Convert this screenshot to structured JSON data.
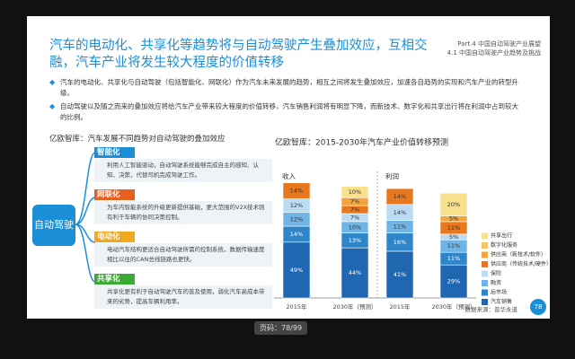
{
  "viewer": {
    "page_indicator": "页码：78/99"
  },
  "slide": {
    "title": "汽车的电动化、共享化等趋势将与自动驾驶产生叠加效应，互相交融，汽车产业将发生较大程度的价值转移",
    "section": "Part.4 中国自动驾驶产业展望",
    "subsection": "4.1 中国自动驾驶产业趋势及挑战",
    "bullets": [
      "汽车的电动化、共享化与自动驾驶（包括智能化、网联化）作为汽车未来发展的趋势，相互之间将发生叠加效应，加速各自趋势的实现和汽车产业的转型升级。",
      "自动驾驶以及随之而来的叠加效应将给汽车产业带来较大程度的价值转移，汽车销售利润将有明显下降，而新技术、数字化和共享出行将在利润中占到较大的比例。"
    ],
    "diagram": {
      "title": "亿欧智库：汽车发展不同趋势对自动驾驶的叠加效应",
      "center": "自动驾驶",
      "items": [
        {
          "label": "智能化",
          "text": "利用人工智能驱动，自动驾驶系统能够完成自主的感知、认知、决策，代替司机完成驾驶工作。"
        },
        {
          "label": "网联化",
          "text": "为车内智能系统的升级更新提供基础，更大范围的V2X技术则有利于车辆的协同决策控制。"
        },
        {
          "label": "电动化",
          "text": "电动汽车结构更适合自动驾驶所需的控制系统，数据传输速度相比以往的CAN总线链路也更快。"
        },
        {
          "label": "共享化",
          "text": "共享化更有利于自动驾驶汽车的普及使用，弱化汽车高成本带来的劣势，提高车辆利用率。"
        }
      ]
    },
    "source": "数据来源：普华永道",
    "page_number": 78
  },
  "chart_data": {
    "type": "stacked_bar",
    "title": "亿欧智库：2015-2030年汽车产业价值转移预测",
    "groups": [
      "收入",
      "利润"
    ],
    "categories": [
      "2015年",
      "2030年（预测）",
      "2015年",
      "2030年（预测）"
    ],
    "ylim": [
      0,
      100
    ],
    "series": [
      {
        "name": "汽车销售",
        "color": "#1f67b0",
        "values": [
          49,
          44,
          41,
          29
        ],
        "value_labels": [
          "49%",
          "44%",
          "41%",
          "29%"
        ]
      },
      {
        "name": "后市场",
        "color": "#2e86c8",
        "values": [
          14,
          13,
          16,
          11
        ],
        "value_labels": [
          "14%",
          "13%",
          "16%",
          "11%"
        ]
      },
      {
        "name": "融资",
        "color": "#6fb4e4",
        "values": [
          12,
          10,
          11,
          11
        ],
        "value_labels": [
          "12%",
          "10%",
          "11%",
          "11%"
        ]
      },
      {
        "name": "保险",
        "color": "#b9dcf2",
        "values": [
          12,
          7,
          14,
          5
        ],
        "value_labels": [
          "12%",
          "7%",
          "14%",
          "5%"
        ]
      },
      {
        "name": "供应商（传统技术/硬件）",
        "color": "#e8781e",
        "values": [
          14,
          7,
          14,
          11
        ],
        "value_labels": [
          "14%",
          "7%",
          "14%",
          "11%"
        ]
      },
      {
        "name": "供应商（新技术/软件）",
        "color": "#f3a43a",
        "values": [
          null,
          7,
          null,
          5
        ],
        "value_labels": [
          null,
          "7%",
          null,
          "5%"
        ]
      },
      {
        "name": "数字化服务",
        "color": "#f7c46c",
        "values": [
          null,
          null,
          null,
          null
        ],
        "value_labels": [
          null,
          null,
          null,
          null
        ]
      },
      {
        "name": "共享出行",
        "color": "#f8e08e",
        "values": [
          null,
          10,
          null,
          20
        ],
        "value_labels": [
          null,
          "10%",
          null,
          "20%"
        ]
      }
    ]
  }
}
